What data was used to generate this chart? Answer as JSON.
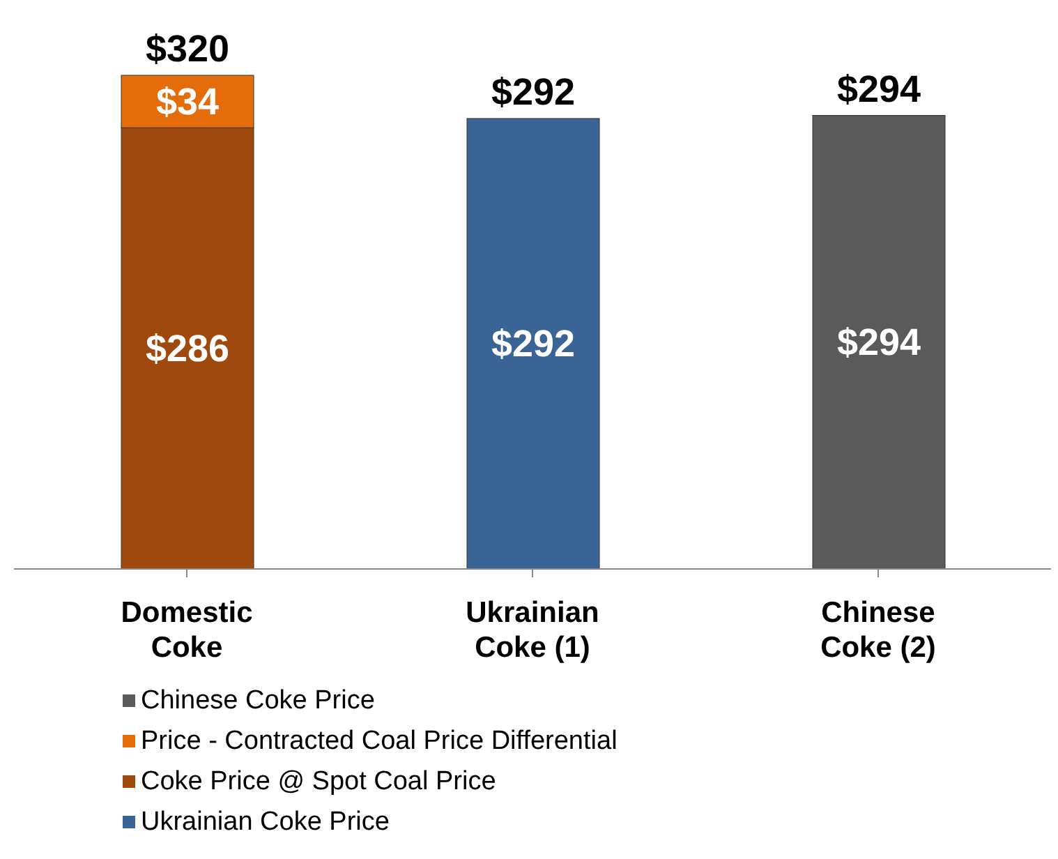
{
  "chart_data": {
    "type": "bar",
    "stacked": true,
    "categories": [
      "Domestic Coke",
      "Ukrainian Coke (1)",
      "Chinese Coke (2)"
    ],
    "series": [
      {
        "name": "Ukrainian Coke Price",
        "color": "#3a6496",
        "values": [
          null,
          292,
          null
        ],
        "value_labels": [
          null,
          "$292",
          null
        ]
      },
      {
        "name": "Coke Price @ Spot Coal Price",
        "color": "#a0490e",
        "values": [
          286,
          null,
          null
        ],
        "value_labels": [
          "$286",
          null,
          null
        ]
      },
      {
        "name": "Price - Contracted Coal Price Differential",
        "color": "#e46c0a",
        "values": [
          34,
          null,
          null
        ],
        "value_labels": [
          "$34",
          null,
          null
        ]
      },
      {
        "name": "Chinese Coke Price",
        "color": "#5a5a5a",
        "values": [
          null,
          null,
          294
        ],
        "value_labels": [
          null,
          null,
          "$294"
        ]
      }
    ],
    "totals": [
      "$320",
      "$292",
      "$294"
    ],
    "legend": "bottom",
    "tick_labels": "x",
    "grid": false
  }
}
